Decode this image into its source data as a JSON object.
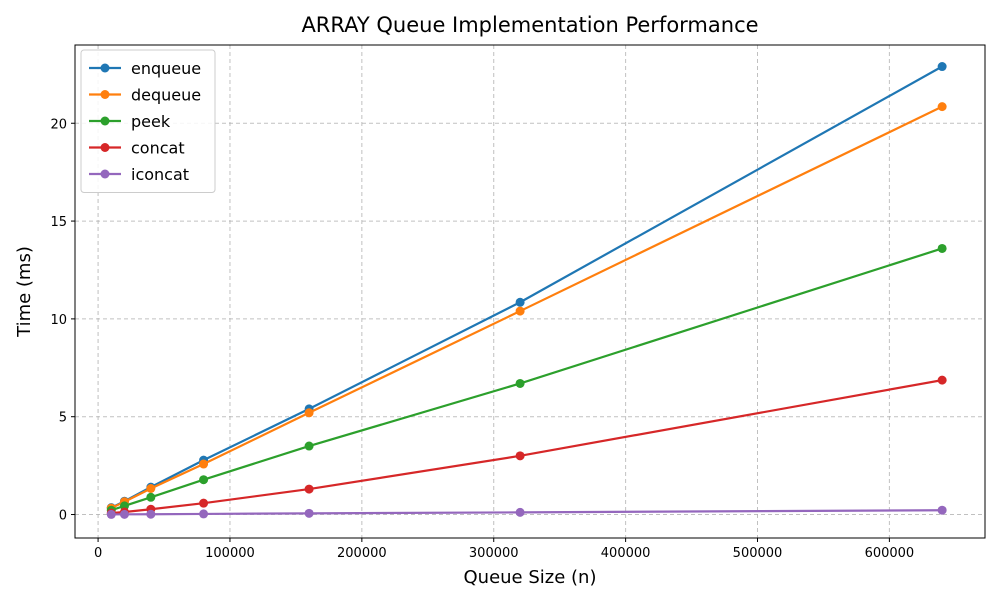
{
  "chart_data": {
    "type": "line",
    "title": "ARRAY Queue Implementation Performance",
    "xlabel": "Queue Size (n)",
    "ylabel": "Time (ms)",
    "x": [
      10000,
      20000,
      40000,
      80000,
      160000,
      320000,
      640000
    ],
    "xlim": [
      -17500,
      672500
    ],
    "ylim": [
      -1.2,
      24.0
    ],
    "xticks": [
      0,
      100000,
      200000,
      300000,
      400000,
      500000,
      600000
    ],
    "xtick_labels": [
      "0",
      "100000",
      "200000",
      "300000",
      "400000",
      "500000",
      "600000"
    ],
    "yticks": [
      0,
      5,
      10,
      15,
      20
    ],
    "ytick_labels": [
      "0",
      "5",
      "10",
      "15",
      "20"
    ],
    "grid": true,
    "legend_position": "upper-left",
    "series": [
      {
        "name": "enqueue",
        "color": "#1f77b4",
        "values": [
          0.35,
          0.68,
          1.4,
          2.78,
          5.4,
          10.85,
          22.9
        ]
      },
      {
        "name": "dequeue",
        "color": "#ff7f0e",
        "values": [
          0.33,
          0.65,
          1.33,
          2.58,
          5.2,
          10.4,
          20.85
        ]
      },
      {
        "name": "peek",
        "color": "#2ca02c",
        "values": [
          0.22,
          0.44,
          0.88,
          1.78,
          3.5,
          6.7,
          13.6
        ]
      },
      {
        "name": "concat",
        "color": "#d62728",
        "values": [
          0.07,
          0.13,
          0.27,
          0.58,
          1.3,
          3.0,
          6.87
        ]
      },
      {
        "name": "iconcat",
        "color": "#9467bd",
        "values": [
          0.005,
          0.01,
          0.015,
          0.03,
          0.06,
          0.11,
          0.22
        ]
      }
    ]
  }
}
